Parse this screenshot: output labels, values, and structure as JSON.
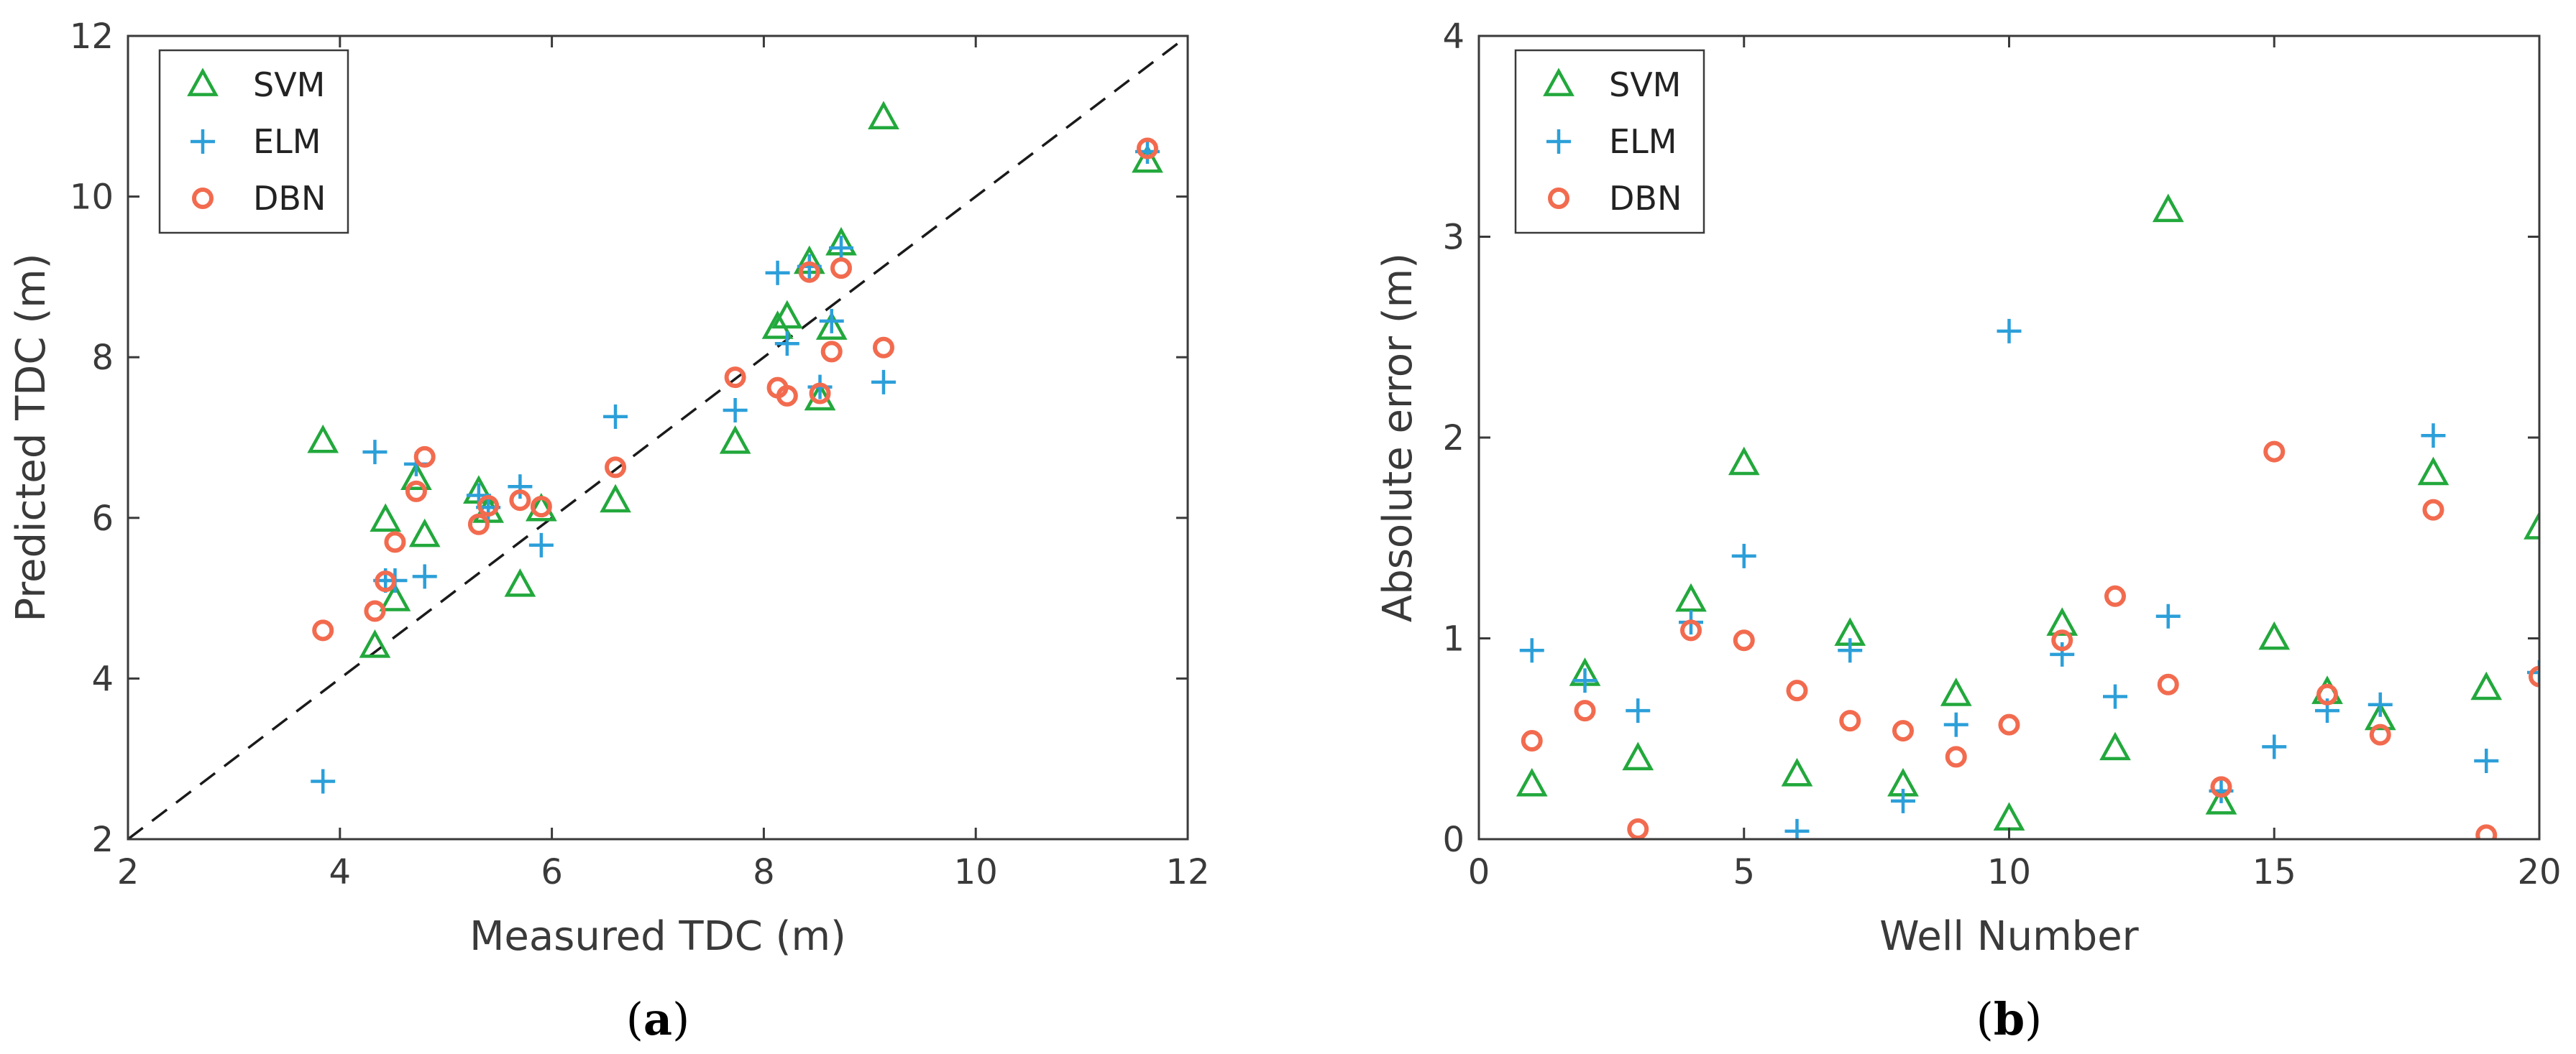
{
  "colors": {
    "SVM": "#22a83c",
    "ELM": "#2c9fd9",
    "DBN": "#f26b4f",
    "axis": "#3a3a3a",
    "diag": "#1a1a1a"
  },
  "chart_data": [
    {
      "panel": "(a)",
      "panel_letter": "a",
      "type": "scatter",
      "title": "",
      "xlabel": "Measured TDC (m)",
      "ylabel": "Predicted TDC (m)",
      "xlim": [
        2,
        12
      ],
      "ylim": [
        2,
        12
      ],
      "xticks": [
        2,
        4,
        6,
        8,
        10,
        12
      ],
      "yticks": [
        2,
        4,
        6,
        8,
        10,
        12
      ],
      "reference_line": "y = x (dashed)",
      "legend": [
        "SVM",
        "ELM",
        "DBN"
      ],
      "legend_position": "top-left",
      "series": [
        {
          "name": "SVM",
          "marker": "triangle",
          "points": [
            [
              3.84,
              6.95
            ],
            [
              4.33,
              4.4
            ],
            [
              4.43,
              5.97
            ],
            [
              4.52,
              4.98
            ],
            [
              4.72,
              6.49
            ],
            [
              4.8,
              5.78
            ],
            [
              5.31,
              6.32
            ],
            [
              5.4,
              6.08
            ],
            [
              5.7,
              5.16
            ],
            [
              5.9,
              6.1
            ],
            [
              6.6,
              6.21
            ],
            [
              7.73,
              6.94
            ],
            [
              8.13,
              8.37
            ],
            [
              8.22,
              8.5
            ],
            [
              8.43,
              9.18
            ],
            [
              8.53,
              7.48
            ],
            [
              8.64,
              8.36
            ],
            [
              8.73,
              9.41
            ],
            [
              9.13,
              10.98
            ],
            [
              11.62,
              10.44
            ]
          ]
        },
        {
          "name": "ELM",
          "marker": "plus",
          "points": [
            [
              3.84,
              2.72
            ],
            [
              4.33,
              6.82
            ],
            [
              4.43,
              5.22
            ],
            [
              4.52,
              5.22
            ],
            [
              4.72,
              6.67
            ],
            [
              4.8,
              5.27
            ],
            [
              5.31,
              6.28
            ],
            [
              5.4,
              6.13
            ],
            [
              5.7,
              6.39
            ],
            [
              5.9,
              5.66
            ],
            [
              6.6,
              7.26
            ],
            [
              7.73,
              7.34
            ],
            [
              8.13,
              9.05
            ],
            [
              8.22,
              8.17
            ],
            [
              8.43,
              9.13
            ],
            [
              8.53,
              7.63
            ],
            [
              8.64,
              8.45
            ],
            [
              8.73,
              9.36
            ],
            [
              9.13,
              7.69
            ],
            [
              11.62,
              10.56
            ]
          ]
        },
        {
          "name": "DBN",
          "marker": "circle",
          "points": [
            [
              3.84,
              4.6
            ],
            [
              4.33,
              4.84
            ],
            [
              4.43,
              5.21
            ],
            [
              4.52,
              5.7
            ],
            [
              4.72,
              6.33
            ],
            [
              4.8,
              6.76
            ],
            [
              5.31,
              5.92
            ],
            [
              5.4,
              6.15
            ],
            [
              5.7,
              6.22
            ],
            [
              5.9,
              6.14
            ],
            [
              6.6,
              6.63
            ],
            [
              7.73,
              7.75
            ],
            [
              8.13,
              7.62
            ],
            [
              8.22,
              7.52
            ],
            [
              8.43,
              9.06
            ],
            [
              8.53,
              7.55
            ],
            [
              8.64,
              8.07
            ],
            [
              8.73,
              9.11
            ],
            [
              9.13,
              8.12
            ],
            [
              11.62,
              10.6
            ]
          ]
        }
      ]
    },
    {
      "panel": "(b)",
      "panel_letter": "b",
      "type": "scatter",
      "title": "",
      "xlabel": "Well Number",
      "ylabel": "Absolute error (m)",
      "xlim": [
        0,
        20
      ],
      "ylim": [
        0,
        4
      ],
      "xticks": [
        0,
        5,
        10,
        15,
        20
      ],
      "yticks": [
        0,
        1,
        2,
        3,
        4
      ],
      "legend": [
        "SVM",
        "ELM",
        "DBN"
      ],
      "legend_position": "top-left",
      "series": [
        {
          "name": "SVM",
          "marker": "triangle",
          "points": [
            [
              1,
              0.27
            ],
            [
              2,
              0.82
            ],
            [
              3,
              0.4
            ],
            [
              4,
              1.19
            ],
            [
              5,
              1.87
            ],
            [
              6,
              0.32
            ],
            [
              7,
              1.02
            ],
            [
              8,
              0.27
            ],
            [
              9,
              0.72
            ],
            [
              10,
              0.1
            ],
            [
              11,
              1.07
            ],
            [
              12,
              0.45
            ],
            [
              13,
              3.13
            ],
            [
              14,
              0.18
            ],
            [
              15,
              1.0
            ],
            [
              16,
              0.73
            ],
            [
              17,
              0.6
            ],
            [
              18,
              1.82
            ],
            [
              19,
              0.75
            ],
            [
              20,
              1.55
            ]
          ]
        },
        {
          "name": "ELM",
          "marker": "plus",
          "points": [
            [
              1,
              0.94
            ],
            [
              2,
              0.79
            ],
            [
              3,
              0.64
            ],
            [
              4,
              1.08
            ],
            [
              5,
              1.41
            ],
            [
              6,
              0.04
            ],
            [
              7,
              0.94
            ],
            [
              8,
              0.19
            ],
            [
              9,
              0.57
            ],
            [
              10,
              2.53
            ],
            [
              11,
              0.92
            ],
            [
              12,
              0.71
            ],
            [
              13,
              1.11
            ],
            [
              14,
              0.24
            ],
            [
              15,
              0.46
            ],
            [
              16,
              0.64
            ],
            [
              17,
              0.67
            ],
            [
              18,
              2.01
            ],
            [
              19,
              0.39
            ],
            [
              20,
              0.83
            ]
          ]
        },
        {
          "name": "DBN",
          "marker": "circle",
          "points": [
            [
              1,
              0.49
            ],
            [
              2,
              0.64
            ],
            [
              3,
              0.05
            ],
            [
              4,
              1.04
            ],
            [
              5,
              0.99
            ],
            [
              6,
              0.74
            ],
            [
              7,
              0.59
            ],
            [
              8,
              0.54
            ],
            [
              9,
              0.41
            ],
            [
              10,
              0.57
            ],
            [
              11,
              0.99
            ],
            [
              12,
              1.21
            ],
            [
              13,
              0.77
            ],
            [
              14,
              0.26
            ],
            [
              15,
              1.93
            ],
            [
              16,
              0.72
            ],
            [
              17,
              0.52
            ],
            [
              18,
              1.64
            ],
            [
              19,
              0.02
            ],
            [
              20,
              0.81
            ]
          ]
        }
      ]
    }
  ]
}
